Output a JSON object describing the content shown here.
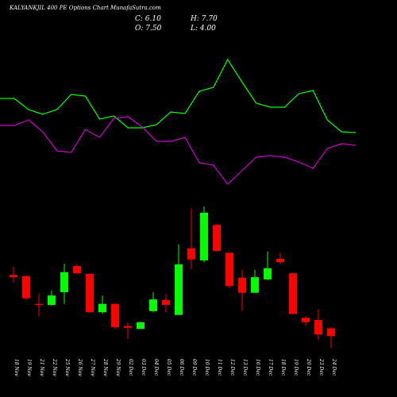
{
  "header": {
    "title": "KALYANKJIL 400 PE Options Chart MunafaSutra.com",
    "close": "C: 6.10",
    "high": "H: 7.70",
    "open": "O: 7.50",
    "low": "L: 4.00"
  },
  "chart_data": {
    "type": "candlestick",
    "categories": [
      "18 Nov",
      "19 Nov",
      "21 Nov",
      "22 Nov",
      "25 Nov",
      "26 Nov",
      "27 Nov",
      "28 Nov",
      "29 Nov",
      "02 Dec",
      "03 Dec",
      "04 Dec",
      "05 Dec",
      "06 Dec",
      "09 Dec",
      "10 Dec",
      "11 Dec",
      "12 Dec",
      "13 Dec",
      "16 Dec",
      "17 Dec",
      "18 Dec",
      "19 Dec",
      "20 Dec",
      "23 Dec",
      "24 Dec"
    ],
    "open": [
      17.1,
      16.9,
      11.9,
      11.7,
      14.0,
      18.7,
      17.3,
      10.4,
      11.9,
      7.9,
      7.4,
      10.6,
      12.6,
      9.9,
      21.9,
      19.7,
      26.1,
      21.1,
      16.6,
      13.9,
      16.3,
      20.0,
      17.4,
      9.4,
      9.0,
      7.5
    ],
    "high": [
      18.6,
      17.0,
      13.7,
      14.3,
      19.1,
      19.0,
      17.4,
      13.4,
      12.0,
      8.6,
      8.7,
      14.0,
      13.6,
      22.6,
      29.1,
      29.4,
      26.3,
      21.1,
      18.0,
      18.0,
      21.3,
      21.1,
      17.4,
      9.7,
      10.9,
      7.7
    ],
    "low": [
      15.7,
      12.6,
      9.7,
      11.6,
      11.9,
      17.3,
      10.3,
      10.1,
      7.4,
      5.6,
      7.4,
      10.4,
      10.4,
      9.9,
      18.1,
      19.4,
      21.3,
      14.7,
      10.6,
      13.9,
      16.1,
      19.1,
      10.0,
      7.9,
      5.4,
      4.0
    ],
    "close": [
      16.7,
      12.9,
      11.7,
      13.4,
      17.6,
      17.4,
      10.4,
      11.9,
      7.7,
      7.6,
      8.6,
      12.7,
      11.7,
      19.0,
      19.9,
      28.3,
      21.4,
      15.1,
      13.9,
      16.7,
      18.3,
      19.4,
      10.1,
      8.6,
      6.4,
      6.1
    ],
    "up_color": "#00ff00",
    "down_color": "#ff0000",
    "ylim": [
      0,
      30
    ],
    "overlay": {
      "type": "line",
      "ylim": [
        0,
        100
      ],
      "series": [
        {
          "color": "#00ff00",
          "values": [
            63,
            63,
            56,
            53,
            56,
            65.5,
            64.5,
            50,
            52,
            44.5,
            44.5,
            46.5,
            54.5,
            53.5,
            67.5,
            70,
            87.5,
            73.5,
            60,
            57.5,
            57.5,
            66,
            68,
            49.5,
            42,
            41.5
          ]
        },
        {
          "color": "#cc00cc",
          "values": [
            46,
            46,
            49.5,
            42,
            30,
            29,
            43.5,
            38.5,
            50.5,
            51.5,
            45,
            36,
            36,
            38.5,
            22.5,
            21,
            9,
            17.5,
            26,
            27,
            26,
            23,
            19,
            31.5,
            34.5,
            33.5
          ]
        }
      ]
    }
  }
}
